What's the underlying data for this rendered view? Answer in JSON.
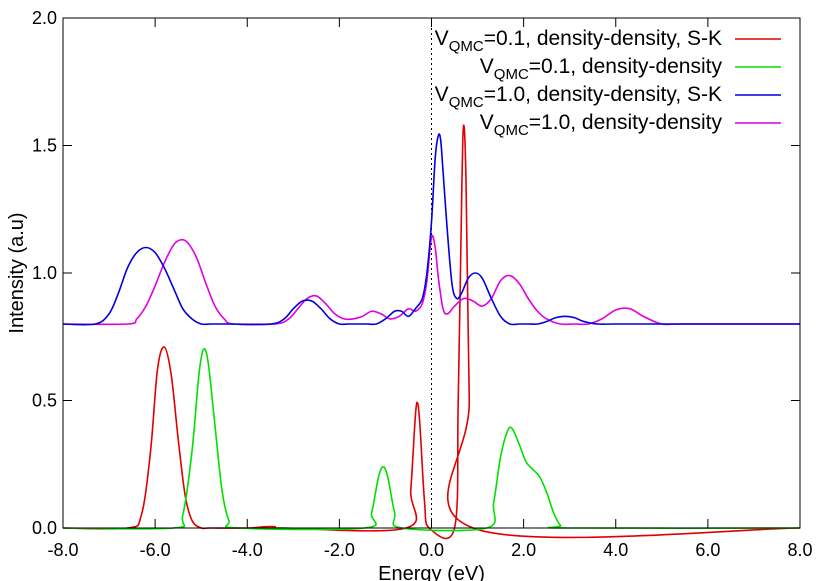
{
  "chart_data": {
    "type": "line",
    "xlabel": "Energy (eV)",
    "ylabel": "Intensity (a.u)",
    "xlim": [
      -8.0,
      8.0
    ],
    "ylim": [
      0.0,
      2.0
    ],
    "xticks": [
      "-8.0",
      "-6.0",
      "-4.0",
      "-2.0",
      "0.0",
      "2.0",
      "4.0",
      "6.0",
      "8.0"
    ],
    "xtick_values": [
      -8,
      -6,
      -4,
      -2,
      0,
      2,
      4,
      6,
      8
    ],
    "yticks": [
      "0.0",
      "0.5",
      "1.0",
      "1.5",
      "2.0"
    ],
    "ytick_values": [
      0,
      0.5,
      1.0,
      1.5,
      2.0
    ],
    "grid": false,
    "legend_position": "top-right",
    "reference_line": {
      "x": 0.0,
      "style": "dotted"
    },
    "series": [
      {
        "name_prefix": "V",
        "name_sub": "QMC",
        "name_suffix": "=0.1, density-density, S-K",
        "color": "#e00000",
        "x": [
          -8.0,
          -6.6,
          -6.3,
          -6.1,
          -5.95,
          -5.8,
          -5.65,
          -5.5,
          -5.35,
          -5.2,
          -5.0,
          -4.8,
          -4.0,
          -3.6,
          -3.4,
          -3.2,
          -0.55,
          -0.45,
          -0.35,
          -0.3,
          -0.25,
          -0.15,
          -0.05,
          0.5,
          0.58,
          0.66,
          0.7,
          0.75,
          0.82,
          0.9,
          8.0
        ],
        "y": [
          0.0,
          0.0,
          0.05,
          0.3,
          0.62,
          0.71,
          0.6,
          0.35,
          0.13,
          0.03,
          0.0,
          0.0,
          0.0,
          0.005,
          0.005,
          0.0,
          0.0,
          0.15,
          0.44,
          0.49,
          0.4,
          0.1,
          0.0,
          0.0,
          0.5,
          1.35,
          1.58,
          1.35,
          0.5,
          0.0,
          0.0
        ]
      },
      {
        "name_prefix": "V",
        "name_sub": "QMC",
        "name_suffix": "=0.1, density-density",
        "color": "#00e000",
        "x": [
          -8.0,
          -5.6,
          -5.4,
          -5.2,
          -5.05,
          -4.95,
          -4.85,
          -4.7,
          -4.55,
          -4.4,
          -4.2,
          -1.45,
          -1.3,
          -1.15,
          -1.05,
          -0.95,
          -0.8,
          -0.65,
          1.2,
          1.35,
          1.5,
          1.65,
          1.75,
          1.9,
          2.05,
          2.2,
          2.35,
          2.5,
          2.65,
          2.8,
          2.95,
          8.0
        ],
        "y": [
          0.0,
          0.0,
          0.05,
          0.3,
          0.6,
          0.7,
          0.65,
          0.4,
          0.15,
          0.03,
          0.0,
          0.0,
          0.06,
          0.2,
          0.24,
          0.2,
          0.06,
          0.0,
          0.0,
          0.1,
          0.28,
          0.38,
          0.39,
          0.33,
          0.26,
          0.23,
          0.2,
          0.14,
          0.06,
          0.01,
          0.0,
          0.0
        ]
      },
      {
        "name_prefix": "V",
        "name_sub": "QMC",
        "name_suffix": "=1.0, density-density, S-K",
        "color": "#0000e0",
        "x": [
          -8.0,
          -7.3,
          -7.0,
          -6.8,
          -6.6,
          -6.4,
          -6.2,
          -6.0,
          -5.8,
          -5.6,
          -5.4,
          -5.2,
          -5.0,
          -4.8,
          -4.6,
          -4.4,
          -3.5,
          -3.2,
          -3.0,
          -2.8,
          -2.6,
          -2.4,
          -2.2,
          -2.0,
          -1.8,
          -1.6,
          -1.4,
          -1.2,
          -1.0,
          -0.8,
          -0.65,
          -0.5,
          -0.35,
          -0.2,
          -0.1,
          0.0,
          0.08,
          0.15,
          0.2,
          0.25,
          0.35,
          0.45,
          0.55,
          0.65,
          0.8,
          0.95,
          1.1,
          1.3,
          1.5,
          1.7,
          1.9,
          2.1,
          2.3,
          2.5,
          2.7,
          2.9,
          3.1,
          3.3,
          3.6,
          4.0,
          5.0,
          8.0
        ],
        "y": [
          0.8,
          0.8,
          0.84,
          0.92,
          1.02,
          1.08,
          1.1,
          1.08,
          1.02,
          0.94,
          0.86,
          0.82,
          0.8,
          0.8,
          0.8,
          0.8,
          0.8,
          0.82,
          0.86,
          0.89,
          0.89,
          0.86,
          0.82,
          0.8,
          0.8,
          0.8,
          0.8,
          0.8,
          0.82,
          0.85,
          0.85,
          0.83,
          0.86,
          0.9,
          1.0,
          1.2,
          1.45,
          1.54,
          1.52,
          1.4,
          1.15,
          0.95,
          0.9,
          0.92,
          0.98,
          1.0,
          0.98,
          0.9,
          0.83,
          0.8,
          0.8,
          0.8,
          0.8,
          0.81,
          0.825,
          0.83,
          0.825,
          0.81,
          0.8,
          0.8,
          0.8,
          0.8
        ]
      },
      {
        "name_prefix": "V",
        "name_sub": "QMC",
        "name_suffix": "=1.0, density-density",
        "color": "#e000e0",
        "x": [
          -8.0,
          -6.6,
          -6.4,
          -6.2,
          -6.0,
          -5.8,
          -5.6,
          -5.45,
          -5.3,
          -5.1,
          -4.9,
          -4.7,
          -4.5,
          -4.3,
          -3.4,
          -3.1,
          -2.9,
          -2.7,
          -2.5,
          -2.3,
          -2.1,
          -1.9,
          -1.7,
          -1.5,
          -1.3,
          -1.1,
          -0.9,
          -0.7,
          -0.5,
          -0.35,
          -0.2,
          -0.1,
          0.0,
          0.08,
          0.15,
          0.25,
          0.35,
          0.5,
          0.7,
          0.9,
          1.1,
          1.3,
          1.5,
          1.7,
          1.9,
          2.1,
          2.3,
          2.5,
          2.8,
          3.1,
          3.4,
          3.7,
          4.0,
          4.3,
          4.6,
          5.0,
          5.5,
          8.0
        ],
        "y": [
          0.8,
          0.8,
          0.82,
          0.87,
          0.95,
          1.04,
          1.11,
          1.13,
          1.12,
          1.06,
          0.96,
          0.87,
          0.82,
          0.8,
          0.8,
          0.82,
          0.86,
          0.9,
          0.91,
          0.88,
          0.84,
          0.82,
          0.82,
          0.83,
          0.85,
          0.84,
          0.82,
          0.83,
          0.86,
          0.85,
          0.88,
          0.97,
          1.14,
          1.1,
          0.98,
          0.86,
          0.84,
          0.87,
          0.9,
          0.89,
          0.87,
          0.9,
          0.97,
          0.99,
          0.96,
          0.9,
          0.85,
          0.82,
          0.8,
          0.8,
          0.8,
          0.82,
          0.855,
          0.86,
          0.83,
          0.8,
          0.8,
          0.8
        ]
      }
    ]
  }
}
